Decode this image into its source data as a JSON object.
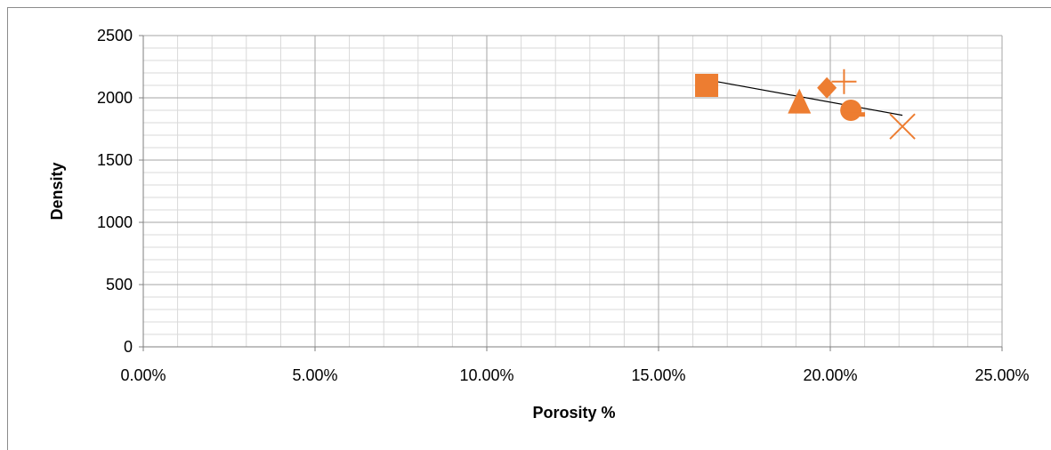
{
  "chart_data": {
    "type": "scatter",
    "title": "",
    "xlabel": "Porosity %",
    "ylabel": "Density",
    "xlim": [
      0,
      0.25
    ],
    "ylim": [
      0,
      2500
    ],
    "x_ticks": [
      0,
      0.05,
      0.1,
      0.15,
      0.2,
      0.25
    ],
    "x_tick_labels": [
      "0.00%",
      "5.00%",
      "10.00%",
      "15.00%",
      "20.00%",
      "25.00%"
    ],
    "y_ticks": [
      0,
      500,
      1000,
      1500,
      2000,
      2500
    ],
    "y_tick_labels": [
      "0",
      "500",
      "1000",
      "1500",
      "2000",
      "2500"
    ],
    "grid": {
      "major": true,
      "minor": true,
      "x_minor_step": 0.01,
      "y_minor_step": 100
    },
    "legend": "none",
    "marker_color": "#ed7d31",
    "points": [
      {
        "x": 0.164,
        "y": 2100,
        "marker": "square"
      },
      {
        "x": 0.199,
        "y": 2080,
        "marker": "diamond"
      },
      {
        "x": 0.204,
        "y": 2130,
        "marker": "plus"
      },
      {
        "x": 0.191,
        "y": 1960,
        "marker": "triangle"
      },
      {
        "x": 0.206,
        "y": 1900,
        "marker": "circle"
      },
      {
        "x": 0.207,
        "y": 1870,
        "marker": "dash"
      },
      {
        "x": 0.221,
        "y": 1770,
        "marker": "x"
      }
    ],
    "trendline": {
      "x": [
        0.164,
        0.221
      ],
      "y": [
        2145,
        1860
      ],
      "color": "#000000"
    }
  }
}
